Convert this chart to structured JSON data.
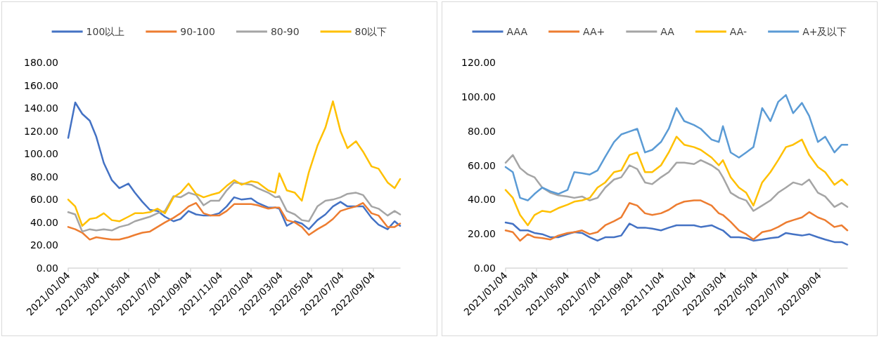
{
  "chart_data": [
    {
      "type": "line",
      "legend": "top",
      "grid": false,
      "marker": "none",
      "line_style": "solid",
      "x": [
        "2021-01-04",
        "2021-01-18",
        "2021-02-01",
        "2021-02-16",
        "2021-03-01",
        "2021-03-16",
        "2021-04-01",
        "2021-04-16",
        "2021-05-04",
        "2021-05-17",
        "2021-06-01",
        "2021-06-16",
        "2021-07-01",
        "2021-07-16",
        "2021-08-02",
        "2021-08-16",
        "2021-09-01",
        "2021-09-16",
        "2021-10-01",
        "2021-10-15",
        "2021-11-01",
        "2021-11-16",
        "2021-12-01",
        "2021-12-16",
        "2022-01-04",
        "2022-01-17",
        "2022-02-07",
        "2022-02-21",
        "2022-03-01",
        "2022-03-16",
        "2022-04-01",
        "2022-04-15",
        "2022-04-29",
        "2022-05-16",
        "2022-06-01",
        "2022-06-16",
        "2022-07-01",
        "2022-07-15",
        "2022-08-01",
        "2022-08-15",
        "2022-09-01",
        "2022-09-15",
        "2022-10-03",
        "2022-10-17",
        "2022-10-28"
      ],
      "xlim": [
        "2021-01-04",
        "2022-10-28"
      ],
      "xticks": [
        {
          "value": "2021-01-04",
          "label": "2021/01/04"
        },
        {
          "value": "2021-03-04",
          "label": "2021/03/04"
        },
        {
          "value": "2021-05-04",
          "label": "2021/05/04"
        },
        {
          "value": "2021-07-04",
          "label": "2021/07/04"
        },
        {
          "value": "2021-09-04",
          "label": "2021/09/04"
        },
        {
          "value": "2021-11-04",
          "label": "2021/11/04"
        },
        {
          "value": "2022-01-04",
          "label": "2022/01/04"
        },
        {
          "value": "2022-03-04",
          "label": "2022/03/04"
        },
        {
          "value": "2022-05-04",
          "label": "2022/05/04"
        },
        {
          "value": "2022-07-04",
          "label": "2022/07/04"
        },
        {
          "value": "2022-09-04",
          "label": "2022/09/04"
        }
      ],
      "ylim": [
        0,
        180
      ],
      "yticks": [
        {
          "value": 0,
          "label": "0.00"
        },
        {
          "value": 20,
          "label": "20.00"
        },
        {
          "value": 40,
          "label": "40.00"
        },
        {
          "value": 60,
          "label": "60.00"
        },
        {
          "value": 80,
          "label": "80.00"
        },
        {
          "value": 100,
          "label": "100.00"
        },
        {
          "value": 120,
          "label": "120.00"
        },
        {
          "value": 140,
          "label": "140.00"
        },
        {
          "value": 160,
          "label": "160.00"
        },
        {
          "value": 180,
          "label": "180.00"
        }
      ],
      "series": [
        {
          "name": "100以上",
          "color": "#4472c4",
          "values": [
            114,
            145,
            135,
            129,
            115,
            92,
            77,
            70,
            74,
            66,
            58,
            51,
            50,
            45,
            41,
            43,
            50,
            47,
            46,
            46,
            48,
            54,
            62,
            60,
            61,
            57,
            53,
            53,
            52,
            37,
            41,
            39,
            34,
            42,
            47,
            54,
            58,
            54,
            54,
            54,
            44,
            38,
            34,
            41,
            37
          ]
        },
        {
          "name": "90-100",
          "color": "#ed7d31",
          "values": [
            36,
            34,
            31,
            25,
            27,
            26,
            25,
            25,
            27,
            29,
            31,
            32,
            36,
            40,
            44,
            48,
            54,
            57,
            48,
            46,
            46,
            50,
            56,
            56,
            56,
            55,
            52,
            53,
            53,
            42,
            40,
            36,
            29,
            34,
            38,
            43,
            50,
            52,
            54,
            57,
            48,
            46,
            36,
            36,
            39
          ]
        },
        {
          "name": "80-90",
          "color": "#a5a5a5",
          "values": [
            49,
            47,
            32,
            34,
            33,
            34,
            33,
            36,
            38,
            41,
            43,
            45,
            48,
            50,
            63,
            62,
            66,
            64,
            55,
            59,
            59,
            68,
            75,
            74,
            73,
            70,
            66,
            62,
            63,
            50,
            47,
            42,
            41,
            54,
            59,
            60,
            62,
            65,
            66,
            64,
            54,
            52,
            46,
            50,
            47
          ]
        },
        {
          "name": "80以下",
          "color": "#ffc000",
          "values": [
            60,
            54,
            37,
            43,
            44,
            48,
            42,
            41,
            45,
            48,
            48,
            49,
            52,
            48,
            62,
            66,
            74,
            65,
            62,
            64,
            66,
            72,
            77,
            73,
            76,
            75,
            68,
            66,
            83,
            68,
            66,
            59,
            84,
            107,
            123,
            146,
            120,
            105,
            111,
            102,
            89,
            87,
            75,
            70,
            78
          ]
        }
      ]
    },
    {
      "type": "line",
      "legend": "top",
      "grid": false,
      "marker": "none",
      "line_style": "solid",
      "x": [
        "2021-01-04",
        "2021-01-18",
        "2021-02-01",
        "2021-02-16",
        "2021-03-01",
        "2021-03-16",
        "2021-04-01",
        "2021-04-16",
        "2021-05-04",
        "2021-05-17",
        "2021-06-01",
        "2021-06-16",
        "2021-07-01",
        "2021-07-16",
        "2021-08-02",
        "2021-08-16",
        "2021-09-01",
        "2021-09-16",
        "2021-10-01",
        "2021-10-15",
        "2021-11-01",
        "2021-11-16",
        "2021-12-01",
        "2021-12-16",
        "2022-01-04",
        "2022-01-17",
        "2022-02-07",
        "2022-02-21",
        "2022-03-01",
        "2022-03-16",
        "2022-04-01",
        "2022-04-15",
        "2022-04-29",
        "2022-05-16",
        "2022-06-01",
        "2022-06-16",
        "2022-07-01",
        "2022-07-15",
        "2022-08-01",
        "2022-08-15",
        "2022-09-01",
        "2022-09-15",
        "2022-10-03",
        "2022-10-17",
        "2022-10-28"
      ],
      "xlim": [
        "2021-01-04",
        "2022-10-28"
      ],
      "xticks": [
        {
          "value": "2021-01-04",
          "label": "2021/01/04"
        },
        {
          "value": "2021-03-04",
          "label": "2021/03/04"
        },
        {
          "value": "2021-05-04",
          "label": "2021/05/04"
        },
        {
          "value": "2021-07-04",
          "label": "2021/07/04"
        },
        {
          "value": "2021-09-04",
          "label": "2021/09/04"
        },
        {
          "value": "2021-11-04",
          "label": "2021/11/04"
        },
        {
          "value": "2022-01-04",
          "label": "2022/01/04"
        },
        {
          "value": "2022-03-04",
          "label": "2022/03/04"
        },
        {
          "value": "2022-05-04",
          "label": "2022/05/04"
        },
        {
          "value": "2022-07-04",
          "label": "2022/07/04"
        },
        {
          "value": "2022-09-04",
          "label": "2022/09/04"
        }
      ],
      "ylim": [
        0,
        120
      ],
      "yticks": [
        {
          "value": 0,
          "label": "0.00"
        },
        {
          "value": 20,
          "label": "20.00"
        },
        {
          "value": 40,
          "label": "40.00"
        },
        {
          "value": 60,
          "label": "60.00"
        },
        {
          "value": 80,
          "label": "80.00"
        },
        {
          "value": 100,
          "label": "100.00"
        },
        {
          "value": 120,
          "label": "120.00"
        }
      ],
      "series": [
        {
          "name": "AAA",
          "color": "#4472c4",
          "values": [
            26.6,
            25.8,
            22,
            22,
            20.5,
            19.8,
            18,
            18,
            19.8,
            21,
            20.5,
            18,
            16,
            18,
            18,
            19,
            26,
            23.6,
            23.6,
            23,
            22,
            23.6,
            25,
            25,
            25,
            24,
            25,
            23,
            22,
            18,
            18,
            17.5,
            16,
            16.7,
            17.5,
            18,
            20.5,
            19.8,
            19,
            19.8,
            18,
            16.7,
            15.2,
            15.2,
            13.7
          ]
        },
        {
          "name": "AA+",
          "color": "#ed7d31",
          "values": [
            22,
            21,
            16,
            19.8,
            18,
            17.5,
            16.7,
            19,
            20.5,
            21,
            22,
            19.8,
            21,
            25,
            27.4,
            29.6,
            38,
            36.5,
            32,
            31,
            32,
            34,
            37,
            38.8,
            39.5,
            39.5,
            36.5,
            32,
            31,
            27,
            22,
            19.8,
            16.7,
            21,
            22,
            24,
            26.6,
            28,
            29.6,
            32.7,
            29.6,
            28,
            24,
            25,
            22
          ]
        },
        {
          "name": "AA",
          "color": "#a5a5a5",
          "values": [
            61.5,
            66,
            58.4,
            54.7,
            53,
            47,
            44,
            42.5,
            41.8,
            41,
            41.8,
            39.5,
            41,
            47,
            51.7,
            53,
            60,
            57.8,
            50,
            49,
            53,
            56,
            61.5,
            61.5,
            60.7,
            63,
            60,
            57,
            53,
            44,
            41,
            39.5,
            33.4,
            36.5,
            39.5,
            44,
            47,
            50,
            48.6,
            51.7,
            44,
            41.8,
            35.7,
            38,
            35.7
          ]
        },
        {
          "name": "AA-",
          "color": "#ffc000",
          "values": [
            45.6,
            41,
            31,
            25,
            31,
            33.4,
            32.7,
            35,
            37,
            38.8,
            39.5,
            41,
            47,
            50,
            56,
            57,
            66,
            67.5,
            56,
            56,
            60,
            67.5,
            76.7,
            72,
            70.6,
            69,
            64.5,
            60,
            63,
            53,
            47,
            44,
            36.5,
            50,
            56,
            63,
            70.6,
            72,
            75,
            66,
            59,
            56,
            48.6,
            51.7,
            48.6
          ]
        },
        {
          "name": "A+及以下",
          "color": "#5b9bd5",
          "values": [
            59,
            56,
            41,
            39.5,
            43.3,
            47,
            44.8,
            43.3,
            45.6,
            56,
            55.4,
            54.6,
            57,
            65,
            73.6,
            78,
            79.7,
            81.3,
            67.5,
            69,
            73.6,
            81.3,
            93.4,
            85.8,
            83.5,
            81.3,
            75,
            73.6,
            82.8,
            67.5,
            64.5,
            67.5,
            70.6,
            93.4,
            85.8,
            97,
            101,
            90.4,
            96.4,
            88.8,
            73.6,
            76.7,
            67.5,
            72,
            72
          ]
        }
      ]
    }
  ]
}
